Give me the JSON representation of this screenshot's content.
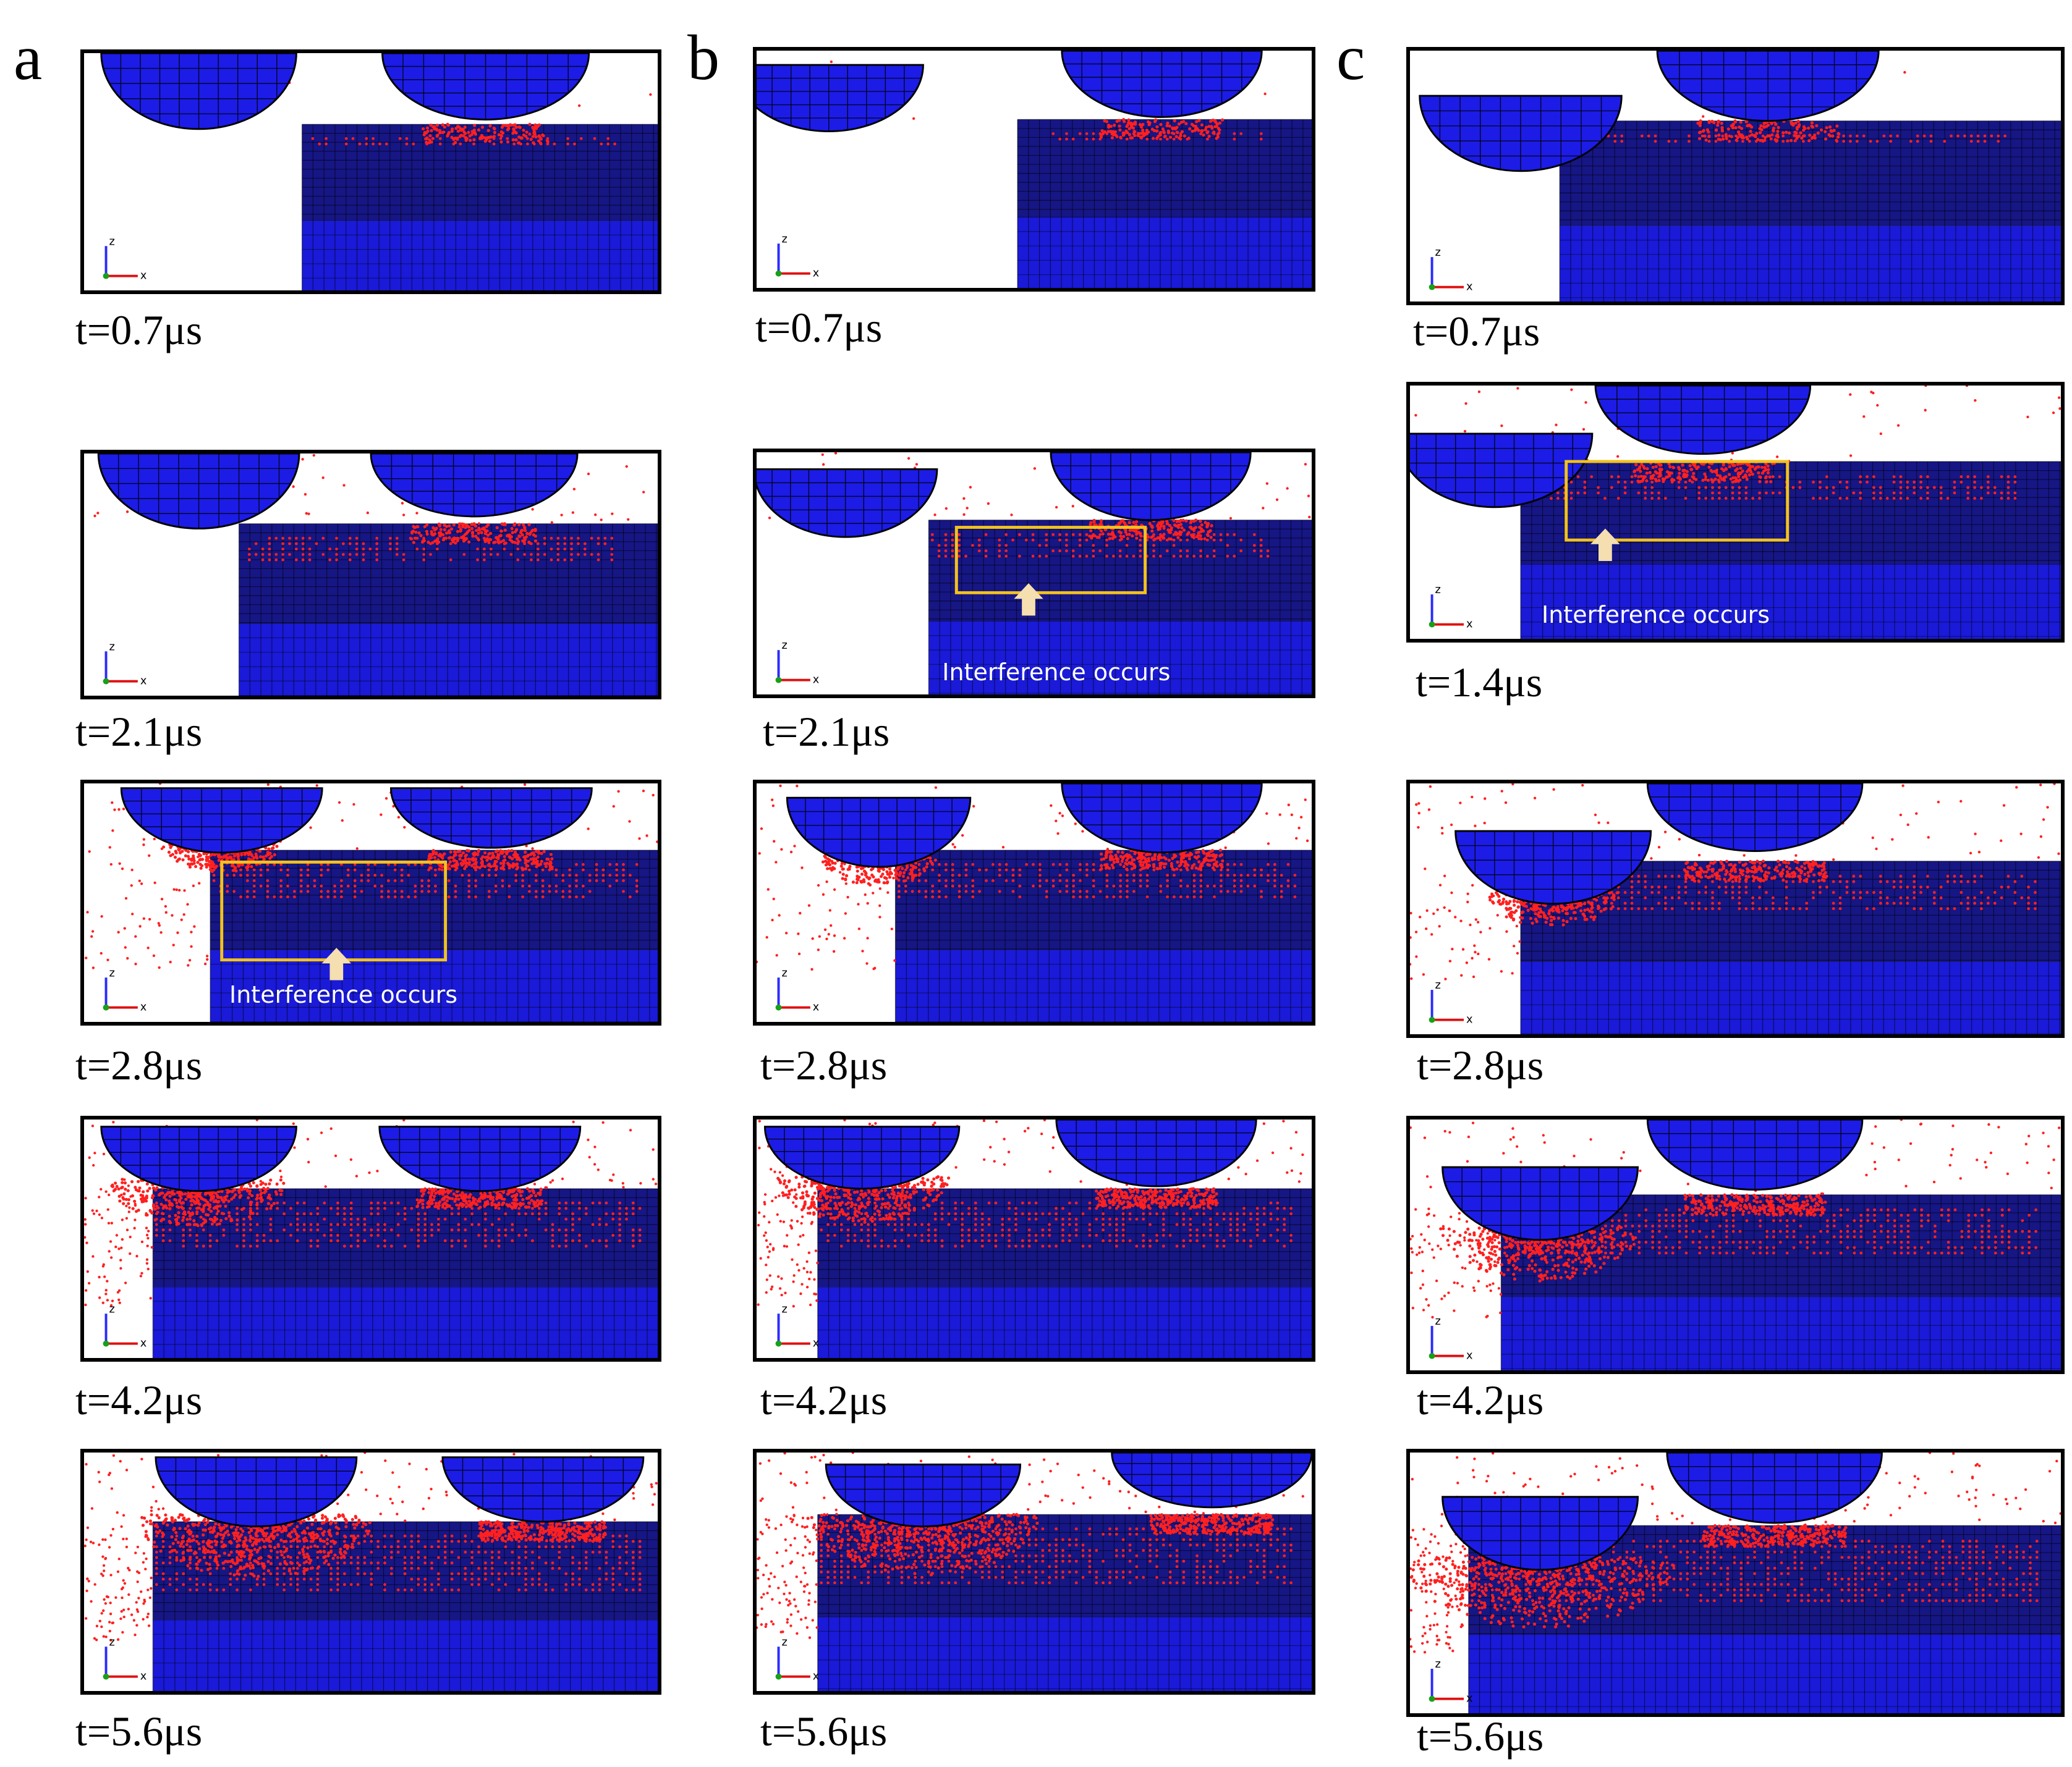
{
  "panels": [
    {
      "letter": "a",
      "frames": [
        {
          "time": "t=0.7μs"
        },
        {
          "time": "t=2.1μs"
        },
        {
          "time": "t=2.8μs",
          "note": "Interference occurs"
        },
        {
          "time": "t=4.2μs"
        },
        {
          "time": "t=5.6μs"
        }
      ]
    },
    {
      "letter": "b",
      "frames": [
        {
          "time": "t=0.7μs"
        },
        {
          "time": "t=2.1μs",
          "note": "Interference occurs"
        },
        {
          "time": "t=2.8μs"
        },
        {
          "time": "t=4.2μs"
        },
        {
          "time": "t=5.6μs"
        }
      ]
    },
    {
      "letter": "c",
      "frames": [
        {
          "time": "t=0.7μs"
        },
        {
          "time": "t=1.4μs",
          "note": "Interference occurs"
        },
        {
          "time": "t=2.8μs"
        },
        {
          "time": "t=4.2μs"
        },
        {
          "time": "t=5.6μs"
        }
      ]
    }
  ],
  "axis_labels": {
    "z": "z",
    "x": "x"
  },
  "colors": {
    "tool_blue": "#1c1ce6",
    "workpiece_top": "#161685",
    "workpiece_bottom": "#1a1ad8",
    "mesh_line": "#000000",
    "damage_red": "#ff2020",
    "highlight_box": "#f2c21c",
    "arrow_fill": "#f5deb0"
  }
}
